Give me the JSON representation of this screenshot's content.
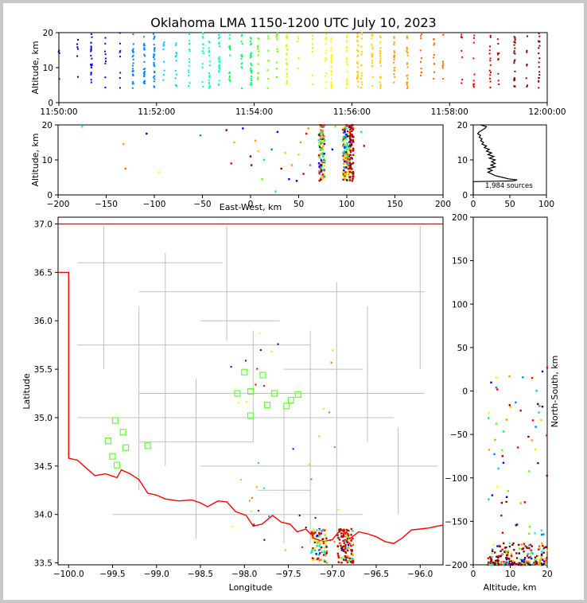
{
  "title": "Oklahoma LMA 1150-1200 UTC July 10, 2023",
  "chart_data": [
    {
      "id": "time_height",
      "type": "scatter",
      "xlabel": "",
      "ylabel": "Altitude, km",
      "xlim": [
        "11:50:00",
        "12:00:00"
      ],
      "ylim": [
        0,
        20
      ],
      "xticks": [
        "11:50:00",
        "11:52:00",
        "11:54:00",
        "11:56:00",
        "11:58:00",
        "12:00:00"
      ],
      "yticks": [
        "0",
        "10",
        "20"
      ],
      "colormap": "time",
      "colors": [
        "#00008b",
        "#0000ff",
        "#0080ff",
        "#00ccff",
        "#00ffcc",
        "#00ff66",
        "#66ff00",
        "#ccff00",
        "#ffff00",
        "#ffcc00",
        "#ff9900",
        "#ff6600",
        "#ff0000",
        "#cc0000",
        "#8b0000"
      ],
      "columns": [
        {
          "t": "11:50:00",
          "n": 4
        },
        {
          "t": "11:50:23",
          "n": 6
        },
        {
          "t": "11:50:40",
          "n": 24
        },
        {
          "t": "11:50:57",
          "n": 9
        },
        {
          "t": "11:51:15",
          "n": 8
        },
        {
          "t": "11:51:31",
          "n": 24
        },
        {
          "t": "11:51:45",
          "n": 22
        },
        {
          "t": "11:51:57",
          "n": 28
        },
        {
          "t": "11:52:09",
          "n": 9
        },
        {
          "t": "11:52:24",
          "n": 12
        },
        {
          "t": "11:52:40",
          "n": 14
        },
        {
          "t": "11:52:57",
          "n": 15
        },
        {
          "t": "11:53:05",
          "n": 20
        },
        {
          "t": "11:53:17",
          "n": 26
        },
        {
          "t": "11:53:30",
          "n": 16
        },
        {
          "t": "11:53:45",
          "n": 14
        },
        {
          "t": "11:53:56",
          "n": 24
        },
        {
          "t": "11:54:05",
          "n": 12
        },
        {
          "t": "11:54:17",
          "n": 8
        },
        {
          "t": "11:54:28",
          "n": 10
        },
        {
          "t": "11:54:40",
          "n": 22
        },
        {
          "t": "11:54:54",
          "n": 6
        },
        {
          "t": "11:55:12",
          "n": 8
        },
        {
          "t": "11:55:28",
          "n": 14
        },
        {
          "t": "11:55:35",
          "n": 30
        },
        {
          "t": "11:55:54",
          "n": 24
        },
        {
          "t": "11:56:07",
          "n": 26
        },
        {
          "t": "11:56:12",
          "n": 16
        },
        {
          "t": "11:56:25",
          "n": 18
        },
        {
          "t": "11:56:35",
          "n": 22
        },
        {
          "t": "11:56:52",
          "n": 18
        },
        {
          "t": "11:57:08",
          "n": 22
        },
        {
          "t": "11:57:25",
          "n": 10
        },
        {
          "t": "11:57:41",
          "n": 10
        },
        {
          "t": "11:57:52",
          "n": 8
        },
        {
          "t": "11:58:15",
          "n": 8
        },
        {
          "t": "11:58:30",
          "n": 10
        },
        {
          "t": "11:58:50",
          "n": 14
        },
        {
          "t": "11:59:00",
          "n": 10
        },
        {
          "t": "11:59:20",
          "n": 26
        },
        {
          "t": "11:59:35",
          "n": 8
        },
        {
          "t": "11:59:50",
          "n": 18
        }
      ]
    },
    {
      "id": "ew_height",
      "type": "scatter",
      "xlabel": "East-West, km",
      "ylabel": "Altitude, km",
      "xlim": [
        -200,
        200
      ],
      "ylim": [
        0,
        20
      ],
      "xticks": [
        "−200",
        "−150",
        "−100",
        "−50",
        "0",
        "50",
        "100",
        "150",
        "200"
      ],
      "yticks": [
        "0",
        "10",
        "20"
      ],
      "clusters": [
        {
          "x": 74,
          "spread": 3,
          "zmin": 4,
          "zmax": 20,
          "n": 110
        },
        {
          "x": 100,
          "spread": 4,
          "zmin": 4,
          "zmax": 20,
          "n": 150
        },
        {
          "x": 105,
          "spread": 2,
          "zmin": 4,
          "zmax": 20,
          "n": 60
        }
      ],
      "scattered": [
        {
          "x": -175,
          "z": 19.5
        },
        {
          "x": -132,
          "z": 14.5
        },
        {
          "x": -130,
          "z": 7.5
        },
        {
          "x": -108,
          "z": 17.5
        },
        {
          "x": -95,
          "z": 6.5
        },
        {
          "x": -52,
          "z": 17
        },
        {
          "x": -25,
          "z": 18.5
        },
        {
          "x": -17,
          "z": 15
        },
        {
          "x": -20,
          "z": 9
        },
        {
          "x": -8,
          "z": 19
        },
        {
          "x": 0,
          "z": 11
        },
        {
          "x": 1,
          "z": 8.5
        },
        {
          "x": 5,
          "z": 15.5
        },
        {
          "x": 8,
          "z": 12.5
        },
        {
          "x": 12,
          "z": 4.5
        },
        {
          "x": 14,
          "z": 10
        },
        {
          "x": 22,
          "z": 13
        },
        {
          "x": 26,
          "z": 1
        },
        {
          "x": 28,
          "z": 18
        },
        {
          "x": 32,
          "z": 7.5
        },
        {
          "x": 40,
          "z": 4.5
        },
        {
          "x": 48,
          "z": 4
        },
        {
          "x": 50,
          "z": 11.5
        },
        {
          "x": 52,
          "z": 15
        },
        {
          "x": 55,
          "z": 6
        },
        {
          "x": 58,
          "z": 17.5
        },
        {
          "x": 62,
          "z": 8.5
        },
        {
          "x": 85,
          "z": 13
        },
        {
          "x": 88,
          "z": 19.5
        },
        {
          "x": 115,
          "z": 18
        },
        {
          "x": 118,
          "z": 14
        },
        {
          "x": 60,
          "z": 19
        },
        {
          "x": 43,
          "z": 8.5
        },
        {
          "x": 36,
          "z": 12
        }
      ]
    },
    {
      "id": "histogram",
      "type": "line",
      "xlim": [
        0,
        100
      ],
      "ylim": [
        0,
        20
      ],
      "xticks": [
        "0",
        "50",
        "100"
      ],
      "yticks": [
        "0",
        "10",
        "20"
      ],
      "annotation": "1,984 sources",
      "profile": [
        {
          "z": 0,
          "c": 0
        },
        {
          "z": 3.8,
          "c": 0
        },
        {
          "z": 4,
          "c": 55
        },
        {
          "z": 4.3,
          "c": 60
        },
        {
          "z": 4.6,
          "c": 48
        },
        {
          "z": 5,
          "c": 40
        },
        {
          "z": 5.5,
          "c": 30
        },
        {
          "z": 6,
          "c": 25
        },
        {
          "z": 6.5,
          "c": 20
        },
        {
          "z": 7,
          "c": 26
        },
        {
          "z": 7.5,
          "c": 20
        },
        {
          "z": 8,
          "c": 30
        },
        {
          "z": 8.5,
          "c": 24
        },
        {
          "z": 9,
          "c": 30
        },
        {
          "z": 9.5,
          "c": 25
        },
        {
          "z": 10,
          "c": 30
        },
        {
          "z": 10.5,
          "c": 22
        },
        {
          "z": 11,
          "c": 28
        },
        {
          "z": 11.5,
          "c": 20
        },
        {
          "z": 12,
          "c": 25
        },
        {
          "z": 12.5,
          "c": 18
        },
        {
          "z": 13,
          "c": 22
        },
        {
          "z": 13.5,
          "c": 15
        },
        {
          "z": 14,
          "c": 18
        },
        {
          "z": 14.5,
          "c": 12
        },
        {
          "z": 15,
          "c": 14
        },
        {
          "z": 15.5,
          "c": 10
        },
        {
          "z": 16,
          "c": 12
        },
        {
          "z": 16.5,
          "c": 8
        },
        {
          "z": 17,
          "c": 10
        },
        {
          "z": 17.5,
          "c": 6
        },
        {
          "z": 18,
          "c": 8
        },
        {
          "z": 18.5,
          "c": 12
        },
        {
          "z": 19,
          "c": 16
        },
        {
          "z": 19.5,
          "c": 18
        },
        {
          "z": 20,
          "c": 10
        }
      ]
    },
    {
      "id": "plan_view",
      "type": "scatter",
      "xlabel": "Longitude",
      "ylabel": "Latitude",
      "xlim": [
        -100.12,
        -95.74
      ],
      "ylim": [
        33.48,
        37.07
      ],
      "xticks": [
        "−100.0",
        "−99.5",
        "−99.0",
        "−98.5",
        "−98.0",
        "−97.5",
        "−97.0",
        "−96.5",
        "−96.0"
      ],
      "yticks": [
        "33.5",
        "34.0",
        "34.5",
        "35.0",
        "35.5",
        "36.0",
        "36.5",
        "37.0"
      ],
      "stations": [
        {
          "lon": -99.55,
          "lat": 34.76
        },
        {
          "lon": -99.47,
          "lat": 34.97
        },
        {
          "lon": -99.38,
          "lat": 34.85
        },
        {
          "lon": -99.35,
          "lat": 34.69
        },
        {
          "lon": -99.5,
          "lat": 34.6
        },
        {
          "lon": -99.45,
          "lat": 34.51
        },
        {
          "lon": -99.1,
          "lat": 34.71
        },
        {
          "lon": -98.0,
          "lat": 35.47
        },
        {
          "lon": -98.08,
          "lat": 35.25
        },
        {
          "lon": -97.93,
          "lat": 35.27
        },
        {
          "lon": -97.93,
          "lat": 35.02
        },
        {
          "lon": -97.79,
          "lat": 35.44
        },
        {
          "lon": -97.74,
          "lat": 35.13
        },
        {
          "lon": -97.66,
          "lat": 35.25
        },
        {
          "lon": -97.52,
          "lat": 35.12
        },
        {
          "lon": -97.47,
          "lat": 35.18
        },
        {
          "lon": -97.39,
          "lat": 35.24
        }
      ],
      "sources": [
        {
          "lon": -97.15,
          "lat": 33.55,
          "n": 90
        },
        {
          "lon": -96.85,
          "lat": 33.55,
          "n": 120
        }
      ],
      "state_border_color": "#ff0000",
      "county_color": "#c0c0c0"
    },
    {
      "id": "ns_height",
      "type": "scatter",
      "xlabel": "Altitude, km",
      "ylabel": "North-South, km",
      "xlim": [
        0,
        20
      ],
      "ylim": [
        -200,
        200
      ],
      "xticks": [
        "0",
        "10",
        "20"
      ],
      "yticks": [
        "−200",
        "−150",
        "−100",
        "−50",
        "0",
        "50",
        "100",
        "150",
        "200"
      ]
    }
  ]
}
